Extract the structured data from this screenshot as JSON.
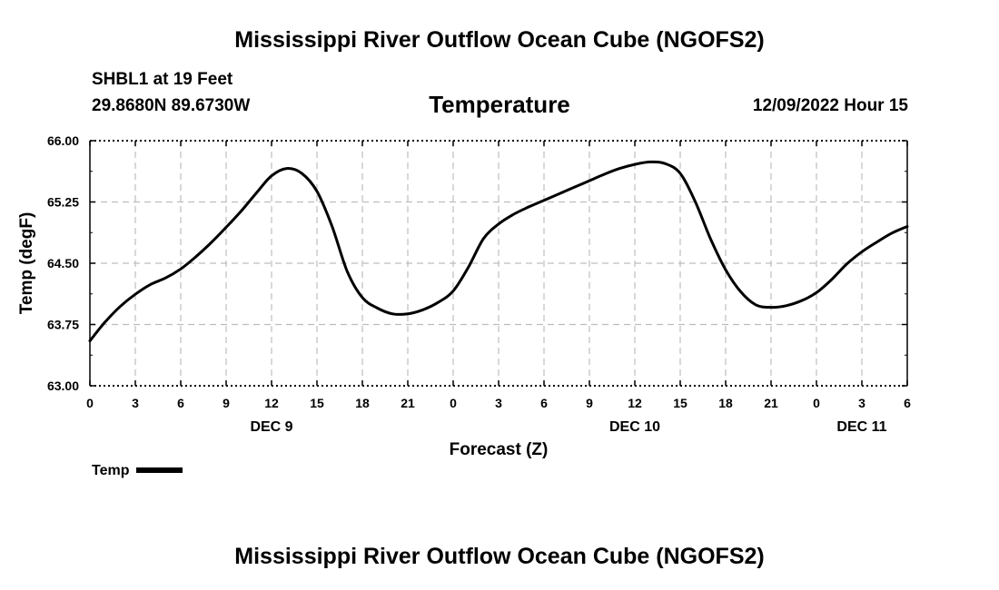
{
  "header": {
    "title": "Mississippi River Outflow Ocean Cube (NGOFS2)",
    "station": "SHBL1 at 19 Feet",
    "coords": "29.8680N  89.6730W",
    "variable": "Temperature",
    "datetime": "12/09/2022 Hour 15"
  },
  "footer": {
    "title": "Mississippi River Outflow Ocean Cube (NGOFS2)"
  },
  "legend": {
    "label": "Temp"
  },
  "colors": {
    "line": "#000000",
    "grid": "#bdbdbd"
  },
  "chart_data": {
    "type": "line",
    "title": "Temperature",
    "xlabel": "Forecast (Z)",
    "ylabel": "Temp (degF)",
    "xlim": [
      0,
      54
    ],
    "ylim": [
      63.0,
      66.0
    ],
    "yticks": [
      63.0,
      63.75,
      64.5,
      65.25,
      66.0
    ],
    "ytick_labels": [
      "63.00",
      "63.75",
      "64.50",
      "65.25",
      "66.00"
    ],
    "xtick_hours": [
      0,
      3,
      6,
      9,
      12,
      15,
      18,
      21,
      24,
      27,
      30,
      33,
      36,
      39,
      42,
      45,
      48,
      51,
      54
    ],
    "xtick_labels": [
      "0",
      "3",
      "6",
      "9",
      "12",
      "15",
      "18",
      "21",
      "0",
      "3",
      "6",
      "9",
      "12",
      "15",
      "18",
      "21",
      "0",
      "3",
      "6"
    ],
    "day_labels": [
      {
        "hour": 12,
        "label": "DEC 9"
      },
      {
        "hour": 36,
        "label": "DEC 10"
      },
      {
        "hour": 51,
        "label": "DEC 11"
      }
    ],
    "series": [
      {
        "name": "Temp",
        "x": [
          0,
          1,
          2,
          3,
          4,
          5,
          6,
          7,
          8,
          9,
          10,
          11,
          12,
          13,
          14,
          15,
          16,
          17,
          18,
          19,
          20,
          21,
          22,
          23,
          24,
          25,
          26,
          27,
          28,
          29,
          30,
          31,
          32,
          33,
          34,
          35,
          36,
          37,
          38,
          39,
          40,
          41,
          42,
          43,
          44,
          45,
          46,
          47,
          48,
          49,
          50,
          51,
          52,
          53,
          54
        ],
        "values": [
          63.55,
          63.78,
          63.97,
          64.12,
          64.24,
          64.32,
          64.43,
          64.58,
          64.75,
          64.94,
          65.14,
          65.36,
          65.57,
          65.66,
          65.6,
          65.38,
          64.95,
          64.4,
          64.08,
          63.95,
          63.88,
          63.88,
          63.93,
          64.02,
          64.16,
          64.45,
          64.8,
          64.98,
          65.1,
          65.19,
          65.27,
          65.35,
          65.43,
          65.51,
          65.59,
          65.66,
          65.71,
          65.74,
          65.72,
          65.6,
          65.25,
          64.8,
          64.42,
          64.15,
          63.99,
          63.96,
          63.98,
          64.04,
          64.14,
          64.3,
          64.49,
          64.64,
          64.76,
          64.87,
          64.95
        ]
      }
    ]
  }
}
